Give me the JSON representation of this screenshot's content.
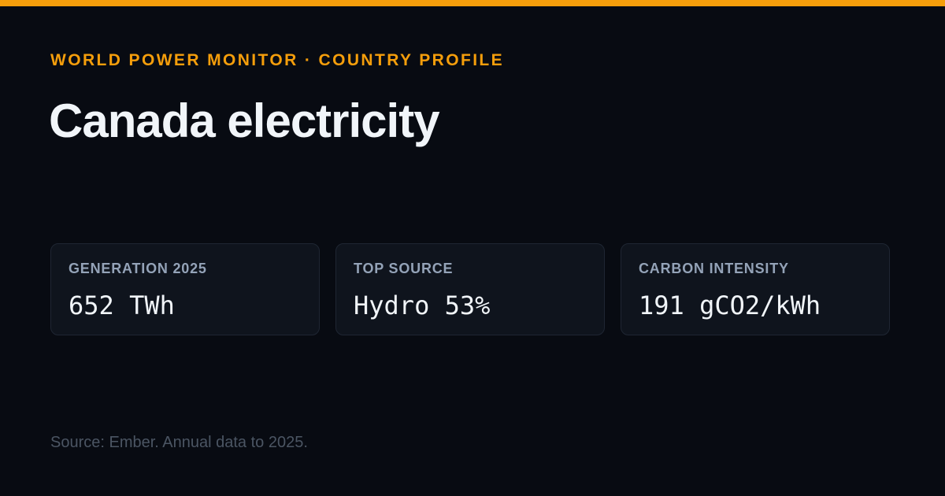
{
  "colors": {
    "accent": "#f59e0b",
    "background": "#080b12",
    "card_background": "#0f141d",
    "title": "#f1f5f9",
    "label": "#94a3b8",
    "muted": "#4b5563"
  },
  "header": {
    "kicker": "WORLD POWER MONITOR · COUNTRY PROFILE",
    "title": "Canada electricity"
  },
  "stats": [
    {
      "label": "GENERATION 2025",
      "value": "652 TWh"
    },
    {
      "label": "TOP SOURCE",
      "value": "Hydro 53%"
    },
    {
      "label": "CARBON INTENSITY",
      "value": "191 gCO2/kWh"
    }
  ],
  "footer": {
    "source": "Source: Ember. Annual data to 2025."
  }
}
